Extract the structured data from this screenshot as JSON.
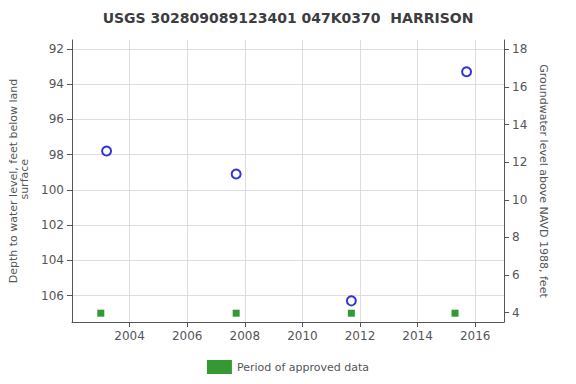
{
  "chart_data": {
    "type": "scatter",
    "title": "USGS 302809089123401 047K0370  HARRISON",
    "ylabel": "Depth to water level, feet below land\n surface",
    "y2label": "Groundwater level above NAVD 1988, feet",
    "xlim": [
      2002.0,
      2017.0
    ],
    "xticks": [
      2004,
      2006,
      2008,
      2010,
      2012,
      2014,
      2016
    ],
    "ylim": [
      107.5,
      91.5
    ],
    "yticks": [
      92,
      94,
      96,
      98,
      100,
      102,
      104,
      106
    ],
    "y2lim": [
      3.5,
      18.5
    ],
    "y2ticks": [
      4,
      6,
      8,
      10,
      12,
      14,
      16,
      18
    ],
    "grid": true,
    "legend": "bottom",
    "series": [
      {
        "x": [
          2003.2,
          2007.7,
          2011.7,
          2015.7
        ],
        "values": [
          97.8,
          99.1,
          106.3,
          93.3
        ],
        "color": "#0000cc",
        "marker": "circle_open"
      },
      {
        "name": "Period of approved data",
        "x": [
          2003.0,
          2007.7,
          2011.7,
          2015.3
        ],
        "values": [
          107.0,
          107.0,
          107.0,
          107.0
        ],
        "color": "#008000",
        "marker": "square"
      }
    ]
  }
}
